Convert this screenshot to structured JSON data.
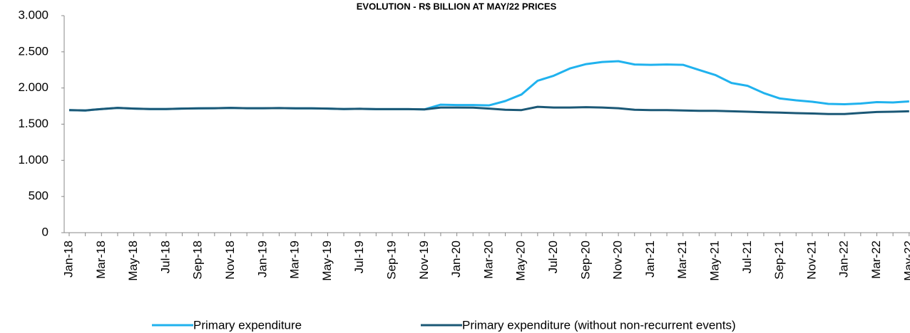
{
  "chart_data": {
    "type": "line",
    "title": "EVOLUTION - R$ BILLION AT MAY/22 PRICES",
    "categories": [
      "Jan-18",
      null,
      "Mar-18",
      null,
      "May-18",
      null,
      "Jul-18",
      null,
      "Sep-18",
      null,
      "Nov-18",
      null,
      "Jan-19",
      null,
      "Mar-19",
      null,
      "May-19",
      null,
      "Jul-19",
      null,
      "Sep-19",
      null,
      "Nov-19",
      null,
      "Jan-20",
      null,
      "Mar-20",
      null,
      "May-20",
      null,
      "Jul-20",
      null,
      "Sep-20",
      null,
      "Nov-20",
      null,
      "Jan-21",
      null,
      "Mar-21",
      null,
      "May-21",
      null,
      "Jul-21",
      null,
      "Sep-21",
      null,
      "Nov-21",
      null,
      "Jan-22",
      null,
      "Mar-22",
      null,
      "May-22"
    ],
    "series": [
      {
        "name": "Primary expenditure",
        "color": "#20b2ee",
        "values": [
          1695,
          1690,
          1710,
          1725,
          1715,
          1710,
          1710,
          1715,
          1718,
          1720,
          1725,
          1720,
          1720,
          1722,
          1718,
          1718,
          1715,
          1710,
          1712,
          1708,
          1708,
          1708,
          1705,
          1770,
          1765,
          1765,
          1760,
          1820,
          1910,
          2100,
          2170,
          2270,
          2330,
          2360,
          2370,
          2325,
          2320,
          2325,
          2320,
          2250,
          2180,
          2070,
          2030,
          1930,
          1855,
          1830,
          1810,
          1780,
          1775,
          1785,
          1805,
          1800,
          1815
        ]
      },
      {
        "name": "Primary expenditure (without non-recurrent events)",
        "color": "#1b5876",
        "values": [
          1695,
          1690,
          1710,
          1725,
          1715,
          1710,
          1710,
          1715,
          1718,
          1720,
          1725,
          1720,
          1720,
          1722,
          1718,
          1718,
          1715,
          1710,
          1712,
          1708,
          1708,
          1708,
          1705,
          1730,
          1730,
          1728,
          1715,
          1700,
          1695,
          1740,
          1730,
          1730,
          1735,
          1730,
          1720,
          1700,
          1695,
          1695,
          1690,
          1685,
          1685,
          1678,
          1672,
          1665,
          1660,
          1652,
          1648,
          1640,
          1640,
          1655,
          1668,
          1672,
          1678
        ]
      }
    ],
    "ylim": [
      0,
      3000
    ],
    "yticks": [
      0,
      500,
      {
        "value": 1000,
        "label": "1.000"
      },
      {
        "value": 1500,
        "label": "1.500"
      },
      {
        "value": 2000,
        "label": "2.000"
      },
      {
        "value": 2500,
        "label": "2.500"
      },
      {
        "value": 3000,
        "label": "3.000"
      }
    ],
    "grid": false,
    "legend": "bottom"
  }
}
